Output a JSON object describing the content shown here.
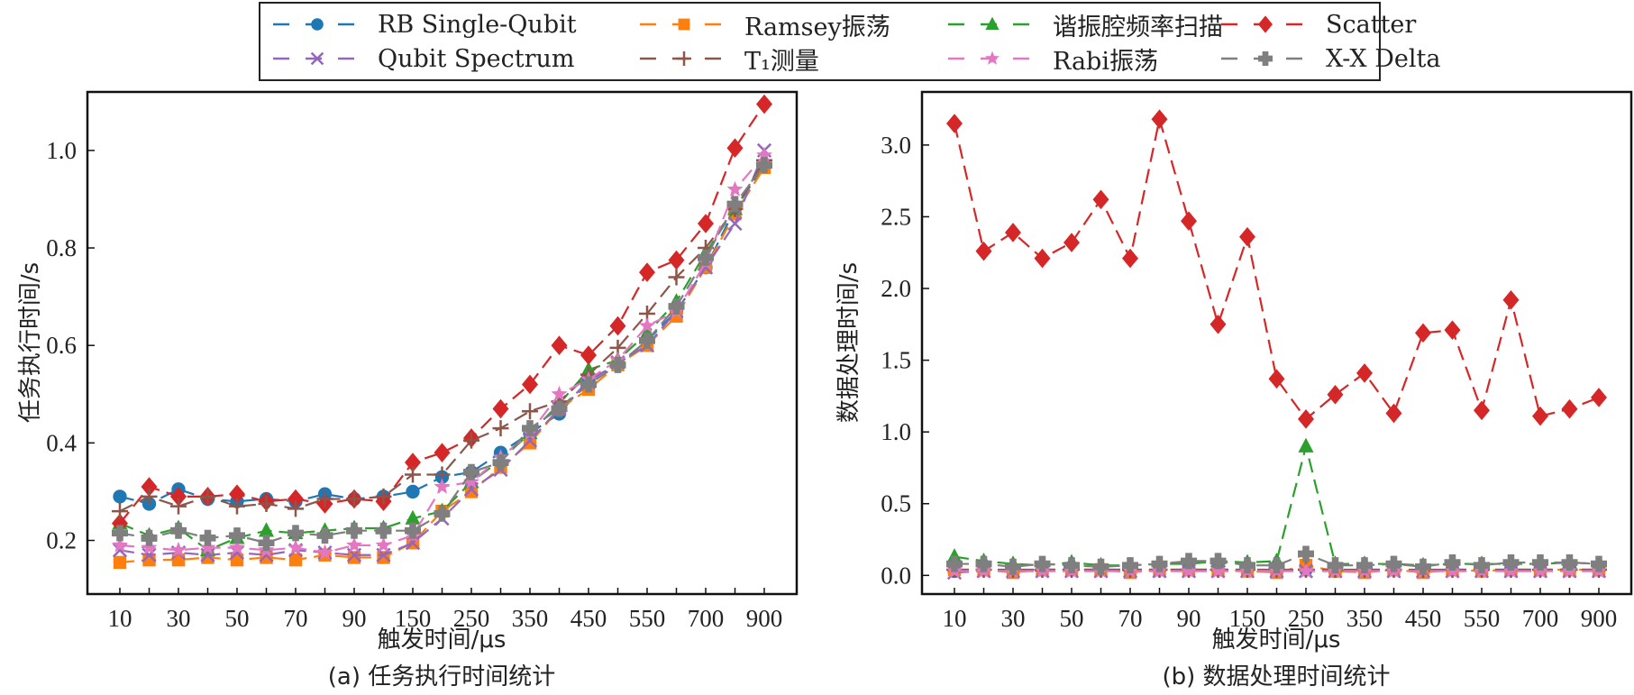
{
  "legend": [
    {
      "key": "rb",
      "label": "RB Single-Qubit"
    },
    {
      "key": "ramsey",
      "label": "Ramsey振荡"
    },
    {
      "key": "resonator",
      "label": "谐振腔频率扫描"
    },
    {
      "key": "scatter",
      "label": "Scatter"
    },
    {
      "key": "spectrum",
      "label": "Qubit Spectrum"
    },
    {
      "key": "t1",
      "label": "T₁测量"
    },
    {
      "key": "rabi",
      "label": "Rabi振荡"
    },
    {
      "key": "xx",
      "label": "X-X Delta"
    }
  ],
  "series_style": {
    "rb": {
      "color": "#1f77b4",
      "marker": "circle"
    },
    "ramsey": {
      "color": "#ff7f0e",
      "marker": "square"
    },
    "resonator": {
      "color": "#2ca02c",
      "marker": "triangle"
    },
    "scatter": {
      "color": "#d62728",
      "marker": "diamond"
    },
    "spectrum": {
      "color": "#9467bd",
      "marker": "x"
    },
    "t1": {
      "color": "#8c564b",
      "marker": "plus"
    },
    "rabi": {
      "color": "#e377c2",
      "marker": "star"
    },
    "xx": {
      "color": "#7f7f7f",
      "marker": "pluslarge"
    }
  },
  "chart_data": [
    {
      "type": "line",
      "caption": "(a) 任务执行时间统计",
      "xlabel": "触发时间/μs",
      "ylabel": "任务执行时间/s",
      "x": [
        10,
        20,
        30,
        40,
        50,
        60,
        70,
        80,
        90,
        100,
        150,
        200,
        250,
        300,
        350,
        400,
        450,
        500,
        550,
        600,
        700,
        800,
        900
      ],
      "xtick_labels": [
        "10",
        "30",
        "50",
        "70",
        "90",
        "150",
        "250",
        "350",
        "450",
        "550",
        "700",
        "900"
      ],
      "ylim": [
        0.09,
        1.12
      ],
      "yticks": [
        0.2,
        0.4,
        0.6,
        0.8,
        1.0
      ],
      "ytick_labels": [
        "0.2",
        "0.4",
        "0.6",
        "0.8",
        "1.0"
      ],
      "grid": false,
      "series": [
        {
          "key": "rb",
          "name": "RB Single-Qubit",
          "values": [
            0.29,
            0.275,
            0.305,
            0.285,
            0.28,
            0.285,
            0.28,
            0.295,
            0.285,
            0.29,
            0.3,
            0.33,
            0.34,
            0.38,
            0.42,
            0.46,
            0.53,
            0.56,
            0.61,
            0.67,
            0.76,
            0.88,
            0.97
          ]
        },
        {
          "key": "ramsey",
          "name": "Ramsey振荡",
          "values": [
            0.155,
            0.16,
            0.16,
            0.165,
            0.16,
            0.165,
            0.16,
            0.17,
            0.165,
            0.165,
            0.195,
            0.26,
            0.3,
            0.35,
            0.4,
            0.47,
            0.51,
            0.56,
            0.6,
            0.66,
            0.76,
            0.87,
            0.965
          ]
        },
        {
          "key": "resonator",
          "name": "谐振腔频率扫描",
          "values": [
            0.235,
            0.21,
            0.225,
            0.18,
            0.205,
            0.22,
            0.215,
            0.22,
            0.225,
            0.225,
            0.245,
            0.26,
            0.32,
            0.365,
            0.42,
            0.48,
            0.55,
            0.57,
            0.625,
            0.69,
            0.79,
            0.88,
            0.975
          ]
        },
        {
          "key": "scatter",
          "name": "Scatter",
          "values": [
            0.235,
            0.31,
            0.29,
            0.29,
            0.295,
            0.28,
            0.285,
            0.275,
            0.285,
            0.28,
            0.36,
            0.38,
            0.41,
            0.47,
            0.52,
            0.6,
            0.58,
            0.64,
            0.75,
            0.775,
            0.85,
            1.005,
            1.095
          ]
        },
        {
          "key": "spectrum",
          "name": "Qubit Spectrum",
          "values": [
            0.18,
            0.17,
            0.175,
            0.17,
            0.175,
            0.17,
            0.18,
            0.175,
            0.17,
            0.17,
            0.195,
            0.245,
            0.305,
            0.345,
            0.405,
            0.47,
            0.525,
            0.565,
            0.6,
            0.67,
            0.76,
            0.85,
            1.0
          ]
        },
        {
          "key": "t1",
          "name": "T₁测量",
          "values": [
            0.26,
            0.29,
            0.27,
            0.29,
            0.27,
            0.275,
            0.265,
            0.285,
            0.285,
            0.29,
            0.335,
            0.335,
            0.405,
            0.43,
            0.465,
            0.485,
            0.54,
            0.595,
            0.665,
            0.74,
            0.8,
            0.88,
            0.98
          ]
        },
        {
          "key": "rabi",
          "name": "Rabi振荡",
          "values": [
            0.19,
            0.185,
            0.18,
            0.185,
            0.185,
            0.18,
            0.185,
            0.175,
            0.19,
            0.19,
            0.21,
            0.31,
            0.32,
            0.37,
            0.42,
            0.5,
            0.53,
            0.57,
            0.64,
            0.67,
            0.77,
            0.92,
            0.99
          ]
        },
        {
          "key": "xx",
          "name": "X-X Delta",
          "values": [
            0.215,
            0.205,
            0.22,
            0.205,
            0.21,
            0.195,
            0.215,
            0.21,
            0.22,
            0.22,
            0.22,
            0.255,
            0.34,
            0.36,
            0.43,
            0.47,
            0.52,
            0.56,
            0.61,
            0.68,
            0.78,
            0.89,
            0.97
          ]
        }
      ]
    },
    {
      "type": "line",
      "caption": "(b) 数据处理时间统计",
      "xlabel": "触发时间/μs",
      "ylabel": "数据处理时间/s",
      "x": [
        10,
        20,
        30,
        40,
        50,
        60,
        70,
        80,
        90,
        100,
        150,
        200,
        250,
        300,
        350,
        400,
        450,
        500,
        550,
        600,
        700,
        800,
        900
      ],
      "xtick_labels": [
        "10",
        "30",
        "50",
        "70",
        "90",
        "150",
        "250",
        "350",
        "450",
        "550",
        "700",
        "900"
      ],
      "ylim": [
        -0.13,
        3.37
      ],
      "yticks": [
        0.0,
        0.5,
        1.0,
        1.5,
        2.0,
        2.5,
        3.0
      ],
      "ytick_labels": [
        "0.0",
        "0.5",
        "1.0",
        "1.5",
        "2.0",
        "2.5",
        "3.0"
      ],
      "grid": false,
      "series": [
        {
          "key": "rb",
          "name": "RB Single-Qubit",
          "values": [
            0.03,
            0.04,
            0.03,
            0.04,
            0.04,
            0.04,
            0.04,
            0.04,
            0.04,
            0.04,
            0.04,
            0.03,
            0.04,
            0.03,
            0.04,
            0.04,
            0.03,
            0.04,
            0.04,
            0.04,
            0.04,
            0.04,
            0.04
          ]
        },
        {
          "key": "ramsey",
          "name": "Ramsey振荡",
          "values": [
            0.04,
            0.04,
            0.02,
            0.04,
            0.04,
            0.04,
            0.02,
            0.04,
            0.04,
            0.04,
            0.03,
            0.02,
            0.07,
            0.03,
            0.02,
            0.04,
            0.02,
            0.04,
            0.03,
            0.04,
            0.04,
            0.04,
            0.04
          ]
        },
        {
          "key": "resonator",
          "name": "谐振腔频率扫描",
          "values": [
            0.13,
            0.1,
            0.08,
            0.07,
            0.09,
            0.07,
            0.07,
            0.08,
            0.08,
            0.1,
            0.09,
            0.1,
            0.9,
            0.08,
            0.08,
            0.08,
            0.07,
            0.08,
            0.08,
            0.08,
            0.08,
            0.09,
            0.08
          ]
        },
        {
          "key": "scatter",
          "name": "Scatter",
          "values": [
            3.15,
            2.26,
            2.39,
            2.21,
            2.32,
            2.62,
            2.21,
            3.18,
            2.47,
            1.75,
            2.36,
            1.37,
            1.09,
            1.26,
            1.41,
            1.13,
            1.69,
            1.71,
            1.15,
            1.92,
            1.11,
            1.16,
            1.24
          ]
        },
        {
          "key": "spectrum",
          "name": "Qubit Spectrum",
          "values": [
            0.02,
            0.03,
            0.03,
            0.03,
            0.03,
            0.03,
            0.03,
            0.03,
            0.03,
            0.03,
            0.03,
            0.03,
            0.03,
            0.03,
            0.03,
            0.03,
            0.03,
            0.03,
            0.03,
            0.03,
            0.03,
            0.03,
            0.03
          ]
        },
        {
          "key": "t1",
          "name": "T₁测量",
          "values": [
            0.04,
            0.04,
            0.04,
            0.04,
            0.04,
            0.04,
            0.04,
            0.04,
            0.04,
            0.04,
            0.04,
            0.04,
            0.04,
            0.04,
            0.04,
            0.04,
            0.04,
            0.04,
            0.04,
            0.04,
            0.04,
            0.04,
            0.04
          ]
        },
        {
          "key": "rabi",
          "name": "Rabi振荡",
          "values": [
            0.03,
            0.03,
            0.03,
            0.03,
            0.03,
            0.03,
            0.03,
            0.03,
            0.03,
            0.03,
            0.03,
            0.03,
            0.03,
            0.03,
            0.03,
            0.03,
            0.03,
            0.03,
            0.03,
            0.03,
            0.03,
            0.03,
            0.03
          ]
        },
        {
          "key": "xx",
          "name": "X-X Delta",
          "values": [
            0.08,
            0.08,
            0.06,
            0.08,
            0.07,
            0.06,
            0.07,
            0.08,
            0.1,
            0.1,
            0.07,
            0.07,
            0.15,
            0.07,
            0.07,
            0.08,
            0.06,
            0.09,
            0.07,
            0.09,
            0.09,
            0.09,
            0.08
          ]
        }
      ]
    }
  ]
}
